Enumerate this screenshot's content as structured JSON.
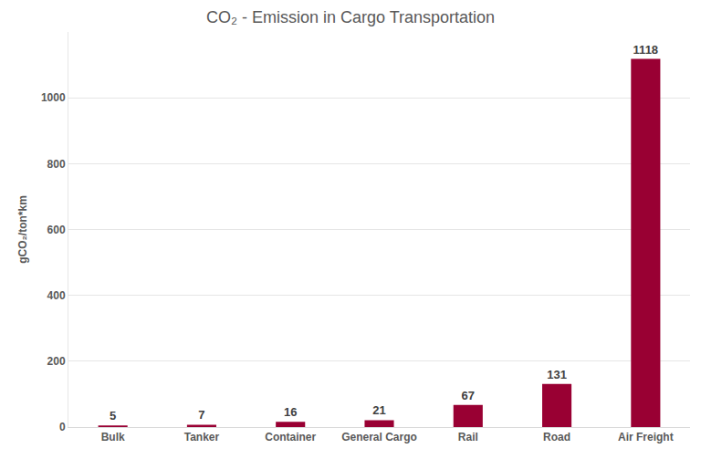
{
  "chart_data": {
    "type": "bar",
    "title": "CO₂ - Emission in Cargo Transportation",
    "y_label": "gCO₂/ton*km",
    "categories": [
      "Bulk",
      "Tanker",
      "Container",
      "General Cargo",
      "Rail",
      "Road",
      "Air Freight"
    ],
    "values": [
      5,
      7,
      16,
      21,
      67,
      131,
      1118
    ],
    "color": "#990033",
    "ylim": [
      0,
      1200
    ],
    "yticks": [
      0,
      200,
      400,
      600,
      800,
      1000
    ],
    "grid": true,
    "data_labels": true
  }
}
